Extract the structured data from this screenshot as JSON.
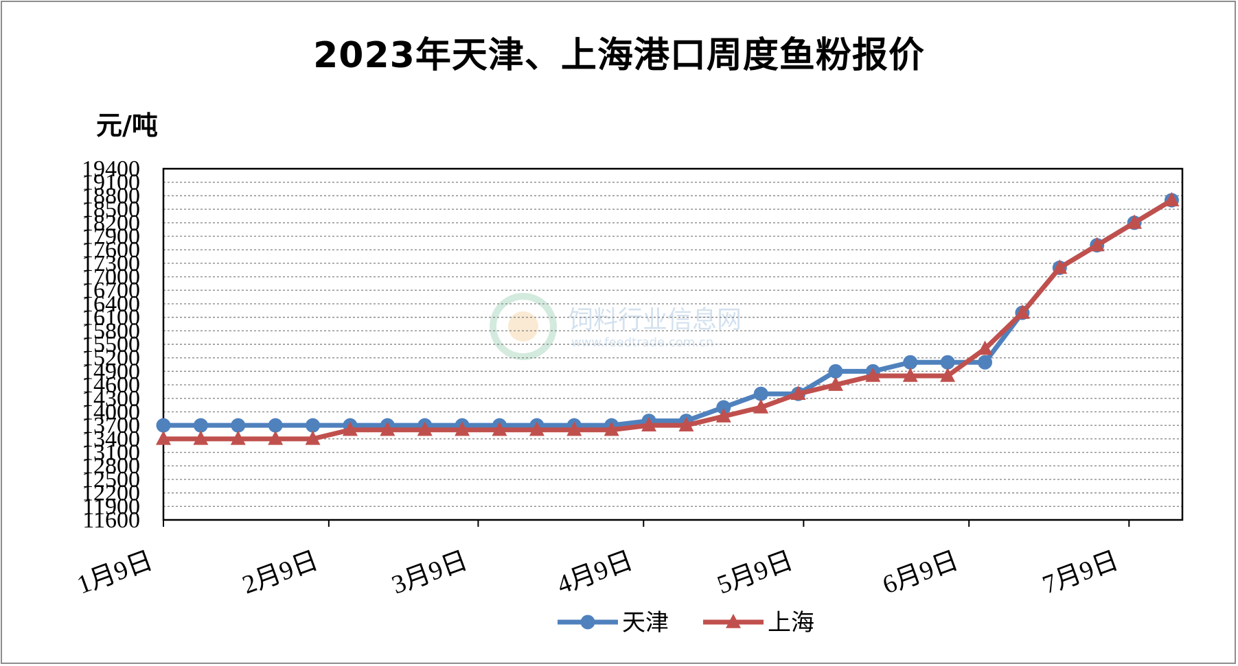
{
  "chart_data": {
    "type": "line",
    "title": "2023年天津、上海港口周度鱼粉报价",
    "ylabel": "元/吨",
    "ylim": [
      11600,
      19400
    ],
    "yticks": [
      11600,
      11900,
      12200,
      12500,
      12800,
      13100,
      13400,
      13700,
      14000,
      14300,
      14600,
      14900,
      15200,
      15500,
      15800,
      16100,
      16400,
      16700,
      17000,
      17300,
      17600,
      17900,
      18200,
      18500,
      18800,
      19100,
      19400
    ],
    "ytick_labels": [
      "11600",
      "11900",
      "12200",
      "12500",
      "12800",
      "13100",
      "13400",
      "13700",
      "14000",
      "14300",
      "14600",
      "14900",
      "15200",
      "15500",
      "15800",
      "16100",
      "16400",
      "16700",
      "17000",
      "17300",
      "17600",
      "17900",
      "18200",
      "18500",
      "18800",
      "19100",
      "19400"
    ],
    "x": [
      "2023-01-09",
      "2023-01-16",
      "2023-01-23",
      "2023-01-30",
      "2023-02-06",
      "2023-02-13",
      "2023-02-20",
      "2023-02-27",
      "2023-03-06",
      "2023-03-13",
      "2023-03-20",
      "2023-03-27",
      "2023-04-03",
      "2023-04-10",
      "2023-04-17",
      "2023-04-24",
      "2023-05-01",
      "2023-05-08",
      "2023-05-15",
      "2023-05-22",
      "2023-05-29",
      "2023-06-05",
      "2023-06-12",
      "2023-06-19",
      "2023-06-26",
      "2023-07-03",
      "2023-07-10",
      "2023-07-17"
    ],
    "xlim": [
      "2023-01-09",
      "2023-07-19"
    ],
    "xticks": [
      "2023-01-09",
      "2023-02-09",
      "2023-03-09",
      "2023-04-09",
      "2023-05-09",
      "2023-06-09",
      "2023-07-09"
    ],
    "xtick_labels": [
      "1月9日",
      "2月9日",
      "3月9日",
      "4月9日",
      "5月9日",
      "6月9日",
      "7月9日"
    ],
    "series": [
      {
        "name": "天津",
        "color": "#4f81bd",
        "marker": "circle",
        "values": [
          13700,
          13700,
          13700,
          13700,
          13700,
          13700,
          13700,
          13700,
          13700,
          13700,
          13700,
          13700,
          13700,
          13800,
          13800,
          14100,
          14400,
          14400,
          14900,
          14900,
          15100,
          15100,
          15100,
          16200,
          17200,
          17700,
          18200,
          18700
        ]
      },
      {
        "name": "上海",
        "color": "#c0504d",
        "marker": "triangle",
        "values": [
          13400,
          13400,
          13400,
          13400,
          13400,
          13600,
          13600,
          13600,
          13600,
          13600,
          13600,
          13600,
          13600,
          13700,
          13700,
          13900,
          14100,
          14400,
          14600,
          14800,
          14800,
          14800,
          15400,
          16200,
          17200,
          17700,
          18200,
          18700
        ]
      }
    ],
    "grid": true,
    "legend": "bottom-center"
  },
  "watermark": {
    "title": "饲料行业信息网",
    "url": "www.feedtrade.com.cn"
  }
}
